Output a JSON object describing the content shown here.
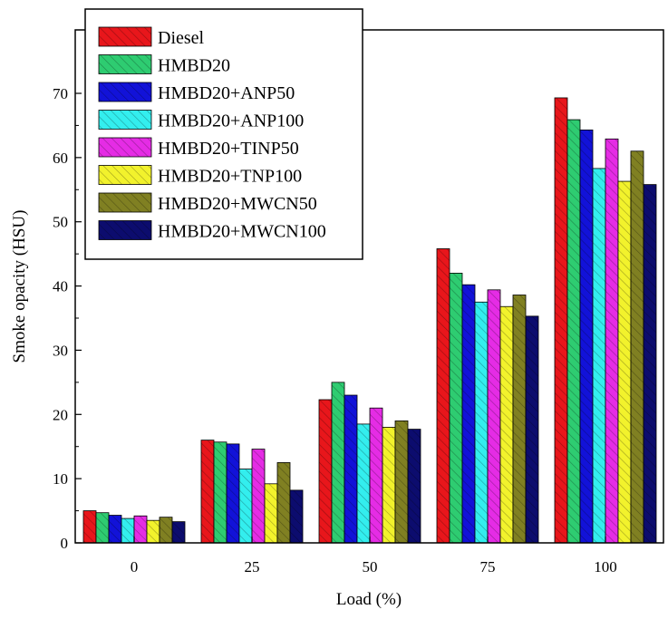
{
  "chart_data": {
    "type": "bar",
    "xlabel": "Load (%)",
    "ylabel": "Smoke opacity (HSU)",
    "ylim": [
      0,
      75
    ],
    "yticks": [
      0,
      10,
      20,
      30,
      40,
      50,
      60,
      70
    ],
    "categories": [
      "0",
      "25",
      "50",
      "75",
      "100"
    ],
    "legend_position": "top-left",
    "grid": false,
    "series": [
      {
        "name": "Diesel",
        "color": "#e8161b",
        "values": [
          5.0,
          16.0,
          22.3,
          45.8,
          69.3
        ]
      },
      {
        "name": "HMBD20",
        "color": "#2ecc71",
        "values": [
          4.7,
          15.7,
          25.0,
          42.0,
          65.9
        ]
      },
      {
        "name": "HMBD20+ANP50",
        "color": "#1212d8",
        "values": [
          4.3,
          15.4,
          23.0,
          40.2,
          64.3
        ]
      },
      {
        "name": "HMBD20+ANP100",
        "color": "#33eeee",
        "values": [
          3.8,
          11.5,
          18.5,
          37.5,
          58.3
        ]
      },
      {
        "name": "HMBD20+TINP50",
        "color": "#e52ce5",
        "values": [
          4.2,
          14.6,
          21.0,
          39.4,
          62.9
        ]
      },
      {
        "name": "HMBD20+TNP100",
        "color": "#f2f22c",
        "values": [
          3.5,
          9.2,
          18.0,
          36.8,
          56.3
        ]
      },
      {
        "name": "HMBD20+MWCN50",
        "color": "#808022",
        "values": [
          4.0,
          12.5,
          19.0,
          38.6,
          61.0
        ]
      },
      {
        "name": "HMBD20+MWCN100",
        "color": "#0c0c6e",
        "values": [
          3.3,
          8.2,
          17.7,
          35.3,
          55.8
        ]
      }
    ]
  }
}
